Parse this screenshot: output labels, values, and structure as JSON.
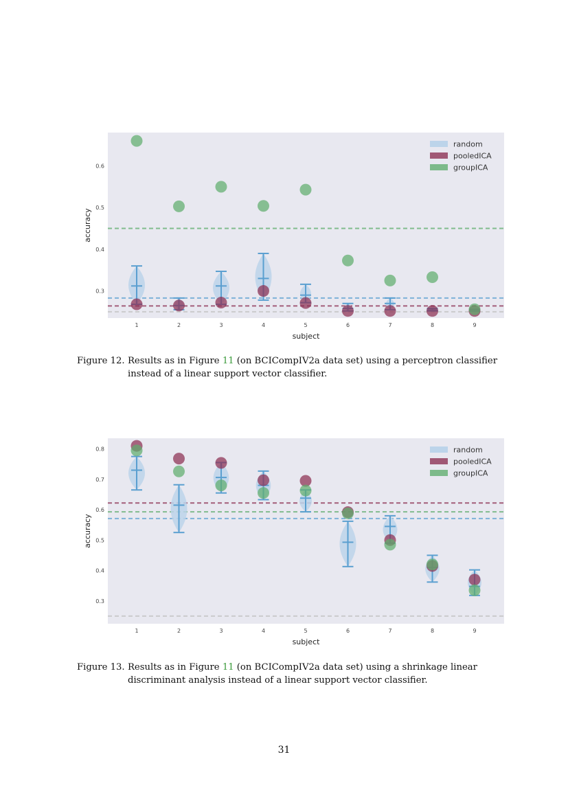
{
  "colors": {
    "background": "#e8e8f0",
    "random": "#5a9fd0",
    "random_fill": "#bcd4ea",
    "pooledICA": "#8c2f52",
    "groupICA": "#5fad6d",
    "chance": "#c8c8c8"
  },
  "chart_data": [
    {
      "type": "scatter",
      "xlabel": "subject",
      "ylabel": "accuracy",
      "categories": [
        "1",
        "2",
        "3",
        "4",
        "5",
        "6",
        "7",
        "8",
        "9"
      ],
      "ylim": [
        0.235,
        0.68
      ],
      "yticks": [
        0.3,
        0.4,
        0.5,
        0.6
      ],
      "ytick_labels": [
        "0.3",
        "0.4",
        "0.5",
        "0.6"
      ],
      "legend": {
        "position": "top-right",
        "entries": [
          "random",
          "pooledICA",
          "groupICA"
        ]
      },
      "grid": false,
      "series": [
        {
          "name": "pooledICA",
          "values": [
            0.268,
            0.265,
            0.272,
            0.3,
            0.271,
            0.252,
            0.252,
            0.252,
            0.252
          ]
        },
        {
          "name": "groupICA",
          "values": [
            0.66,
            0.503,
            0.55,
            0.504,
            0.543,
            0.373,
            0.325,
            0.333,
            0.256
          ]
        }
      ],
      "random_distribution": {
        "median": [
          0.312,
          0.265,
          0.312,
          0.33,
          0.29,
          0.258,
          0.27,
          0.254,
          0.252
        ],
        "min": [
          0.268,
          0.255,
          0.268,
          0.278,
          0.272,
          0.252,
          0.255,
          0.252,
          0.252
        ],
        "max": [
          0.36,
          0.283,
          0.347,
          0.39,
          0.316,
          0.27,
          0.283,
          0.258,
          0.256
        ]
      },
      "reference_lines": {
        "random": 0.283,
        "pooledICA": 0.264,
        "groupICA": 0.45,
        "chance": 0.25
      }
    },
    {
      "type": "scatter",
      "xlabel": "subject",
      "ylabel": "accuracy",
      "categories": [
        "1",
        "2",
        "3",
        "4",
        "5",
        "6",
        "7",
        "8",
        "9"
      ],
      "ylim": [
        0.225,
        0.835
      ],
      "yticks": [
        0.3,
        0.4,
        0.5,
        0.6,
        0.7,
        0.8
      ],
      "ytick_labels": [
        "0.3",
        "0.4",
        "0.5",
        "0.6",
        "0.7",
        "0.8"
      ],
      "legend": {
        "position": "top-right",
        "entries": [
          "random",
          "pooledICA",
          "groupICA"
        ]
      },
      "grid": false,
      "series": [
        {
          "name": "pooledICA",
          "values": [
            0.81,
            0.768,
            0.754,
            0.697,
            0.695,
            0.592,
            0.5,
            0.415,
            0.37
          ]
        },
        {
          "name": "groupICA",
          "values": [
            0.795,
            0.726,
            0.68,
            0.655,
            0.663,
            0.588,
            0.485,
            0.42,
            0.335
          ]
        }
      ],
      "random_distribution": {
        "median": [
          0.73,
          0.615,
          0.706,
          0.68,
          0.638,
          0.493,
          0.545,
          0.41,
          0.348
        ],
        "min": [
          0.665,
          0.525,
          0.655,
          0.633,
          0.593,
          0.413,
          0.49,
          0.362,
          0.318
        ],
        "max": [
          0.775,
          0.682,
          0.755,
          0.727,
          0.665,
          0.562,
          0.58,
          0.45,
          0.402
        ]
      },
      "reference_lines": {
        "random": 0.571,
        "pooledICA": 0.622,
        "groupICA": 0.593,
        "chance": 0.25
      }
    }
  ],
  "figure12": {
    "label": "Figure 12.",
    "caption_pre": "Results as in Figure ",
    "caption_ref": "11",
    "caption_post": " (on BCICompIV2a data set) using a perceptron classifier",
    "caption_line2": "instead of a linear support vector classifier."
  },
  "figure13": {
    "label": "Figure 13.",
    "caption_pre": "Results as in Figure ",
    "caption_ref": "11",
    "caption_post": " (on BCICompIV2a data set) using a shrinkage linear",
    "caption_line2": "discriminant analysis instead of a linear support vector classifier."
  },
  "page_number": "31"
}
